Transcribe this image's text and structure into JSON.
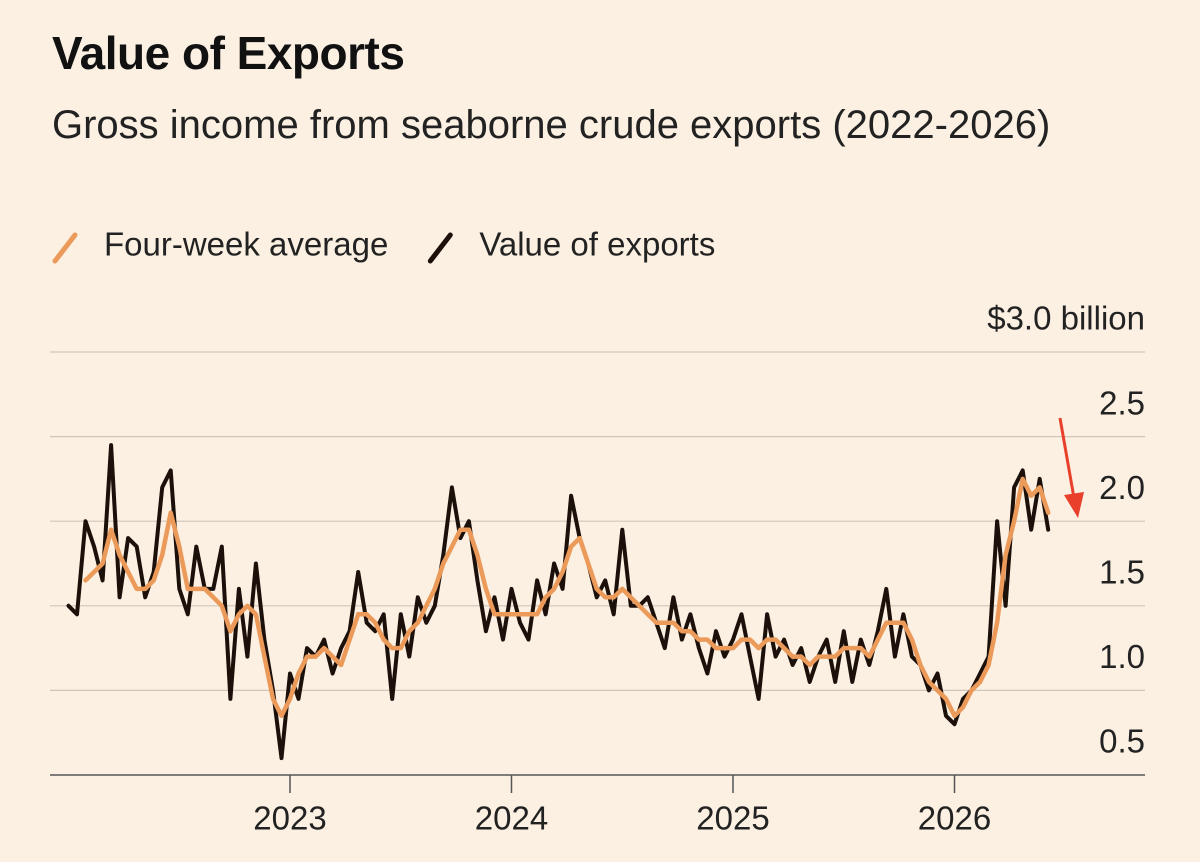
{
  "chart_data": {
    "type": "line",
    "title": "Value of Exports",
    "subtitle": "Gross income from seaborne crude exports (2022-2026)",
    "categories": [
      null,
      null,
      null,
      null,
      null,
      null,
      null,
      null,
      null,
      null,
      null,
      null,
      null,
      null,
      null,
      null,
      null,
      null,
      null,
      null,
      null,
      null,
      null,
      null,
      null,
      null,
      "2023",
      null,
      null,
      null,
      null,
      null,
      null,
      null,
      null,
      null,
      null,
      null,
      null,
      null,
      null,
      null,
      null,
      null,
      null,
      null,
      null,
      null,
      null,
      null,
      null,
      null,
      "2024",
      null,
      null,
      null,
      null,
      null,
      null,
      null,
      null,
      null,
      null,
      null,
      null,
      null,
      null,
      null,
      null,
      null,
      null,
      null,
      null,
      null,
      null,
      null,
      null,
      null,
      "2025",
      null,
      null,
      null,
      null,
      null,
      null,
      null,
      null,
      null,
      null,
      null,
      null,
      null,
      null,
      null,
      null,
      null,
      null,
      null,
      null,
      null,
      null,
      null,
      null,
      null,
      "2026",
      null,
      null,
      null,
      null,
      null,
      null,
      null,
      null,
      null,
      null,
      null
    ],
    "series": [
      {
        "name": "Four-week average",
        "color": "#eb9a5a",
        "values": [
          null,
          null,
          1.65,
          1.7,
          1.75,
          1.95,
          1.8,
          1.7,
          1.6,
          1.6,
          1.65,
          1.8,
          2.05,
          1.85,
          1.6,
          1.6,
          1.6,
          1.55,
          1.5,
          1.35,
          1.45,
          1.5,
          1.45,
          1.2,
          0.95,
          0.85,
          0.95,
          1.1,
          1.2,
          1.2,
          1.25,
          1.2,
          1.15,
          1.3,
          1.45,
          1.45,
          1.4,
          1.3,
          1.25,
          1.25,
          1.35,
          1.4,
          1.5,
          1.6,
          1.75,
          1.85,
          1.95,
          1.95,
          1.8,
          1.6,
          1.45,
          1.45,
          1.45,
          1.45,
          1.45,
          1.45,
          1.55,
          1.6,
          1.7,
          1.85,
          1.9,
          1.75,
          1.6,
          1.55,
          1.55,
          1.6,
          1.55,
          1.5,
          1.45,
          1.4,
          1.4,
          1.4,
          1.35,
          1.35,
          1.3,
          1.3,
          1.25,
          1.25,
          1.25,
          1.3,
          1.3,
          1.25,
          1.3,
          1.3,
          1.25,
          1.2,
          1.2,
          1.15,
          1.2,
          1.2,
          1.2,
          1.25,
          1.25,
          1.25,
          1.2,
          1.3,
          1.4,
          1.4,
          1.4,
          1.3,
          1.15,
          1.05,
          1.0,
          0.95,
          0.85,
          0.9,
          1.0,
          1.05,
          1.15,
          1.4,
          1.8,
          2.0,
          2.25,
          2.15,
          2.2,
          2.05
        ]
      },
      {
        "name": "Value of exports",
        "color": "#1c100b",
        "values": [
          1.5,
          1.45,
          2.0,
          1.85,
          1.65,
          2.45,
          1.55,
          1.9,
          1.85,
          1.55,
          1.7,
          2.2,
          2.3,
          1.6,
          1.45,
          1.85,
          1.6,
          1.6,
          1.85,
          0.95,
          1.6,
          1.2,
          1.75,
          1.3,
          1.0,
          0.6,
          1.1,
          0.95,
          1.25,
          1.2,
          1.3,
          1.1,
          1.25,
          1.35,
          1.7,
          1.4,
          1.35,
          1.45,
          0.95,
          1.45,
          1.2,
          1.55,
          1.4,
          1.5,
          1.8,
          2.2,
          1.9,
          2.0,
          1.65,
          1.35,
          1.55,
          1.3,
          1.6,
          1.4,
          1.3,
          1.65,
          1.45,
          1.75,
          1.6,
          2.15,
          1.9,
          1.75,
          1.55,
          1.65,
          1.45,
          1.95,
          1.5,
          1.5,
          1.55,
          1.4,
          1.25,
          1.55,
          1.3,
          1.45,
          1.25,
          1.1,
          1.35,
          1.2,
          1.3,
          1.45,
          1.2,
          0.95,
          1.45,
          1.2,
          1.3,
          1.15,
          1.25,
          1.05,
          1.2,
          1.3,
          1.05,
          1.35,
          1.05,
          1.3,
          1.15,
          1.35,
          1.6,
          1.2,
          1.45,
          1.2,
          1.15,
          1.0,
          1.1,
          0.85,
          0.8,
          0.95,
          1.0,
          1.1,
          1.2,
          2.0,
          1.5,
          2.2,
          2.3,
          1.95,
          2.25,
          1.95
        ]
      }
    ],
    "ylim": [
      0.5,
      3.0
    ],
    "yticks": [
      0.5,
      {
        "value": 1,
        "label": "1.0"
      },
      1.5,
      {
        "value": 2,
        "label": "2.0"
      },
      2.5,
      {
        "value": 3,
        "label": "$3.0 billion"
      }
    ],
    "grid": true
  }
}
